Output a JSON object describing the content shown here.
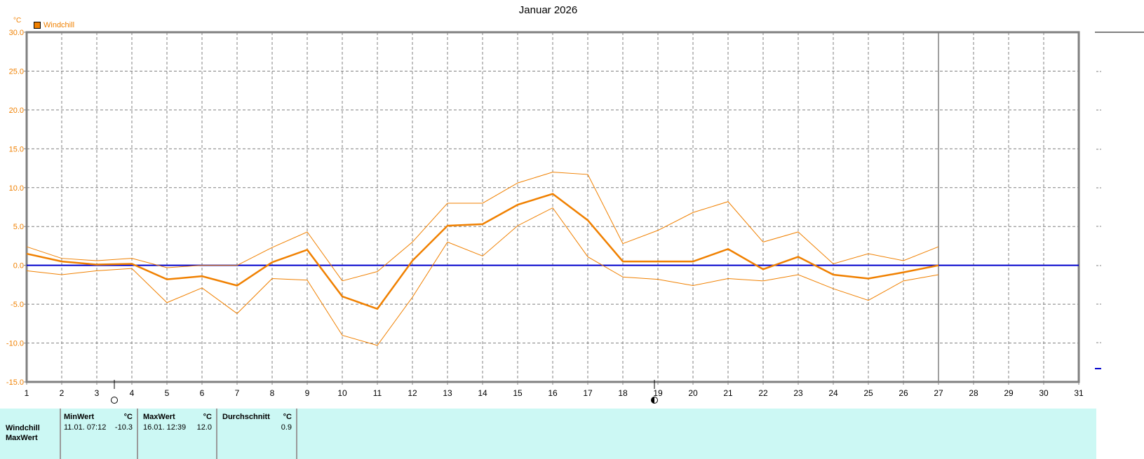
{
  "header": {
    "title": "Januar 2026",
    "unit": "°C"
  },
  "legend": [
    {
      "label": "Windchill",
      "color": "#f08000"
    }
  ],
  "chart_data": {
    "type": "line",
    "title": "Januar 2026",
    "xlabel": "",
    "ylabel": "°C",
    "xlim": [
      1,
      31
    ],
    "ylim": [
      -15,
      30
    ],
    "yticks": [
      "30.0",
      "25.0",
      "20.0",
      "15.0",
      "10.0",
      "5.0",
      "0.0",
      "-5.0",
      "-10.0",
      "-15.0"
    ],
    "grid": true,
    "legend_position": "top-left",
    "x": [
      1,
      2,
      3,
      4,
      5,
      6,
      7,
      8,
      9,
      10,
      11,
      12,
      13,
      14,
      15,
      16,
      17,
      18,
      19,
      20,
      21,
      22,
      23,
      24,
      25,
      26,
      27
    ],
    "series": [
      {
        "name": "Windchill (avg)",
        "values": [
          1.5,
          0.5,
          0.1,
          0.2,
          -1.8,
          -1.4,
          -2.6,
          0.4,
          2.0,
          -4.0,
          -5.6,
          0.6,
          5.1,
          5.3,
          7.8,
          9.2,
          5.8,
          0.5,
          0.5,
          0.5,
          2.1,
          -0.5,
          1.1,
          -1.2,
          -1.7,
          -0.9,
          0.0
        ]
      },
      {
        "name": "Windchill (max)",
        "values": [
          2.4,
          0.9,
          0.6,
          0.9,
          -0.3,
          0.0,
          0.0,
          2.3,
          4.3,
          -2.0,
          -0.8,
          3.0,
          8.0,
          8.0,
          10.6,
          12.0,
          11.7,
          2.8,
          4.5,
          6.8,
          8.2,
          3.0,
          4.3,
          0.2,
          1.5,
          0.6,
          2.4
        ]
      },
      {
        "name": "Windchill (min)",
        "values": [
          -0.7,
          -1.2,
          -0.7,
          -0.4,
          -4.8,
          -2.9,
          -6.2,
          -1.7,
          -1.9,
          -9.0,
          -10.3,
          -4.1,
          3.0,
          1.2,
          5.1,
          7.4,
          1.1,
          -1.5,
          -1.8,
          -2.6,
          -1.7,
          -2.0,
          -1.2,
          -3.0,
          -4.5,
          -2.0,
          -1.2
        ]
      }
    ],
    "reference_line": {
      "y": 0,
      "color": "#0000cc"
    },
    "current_day_marker": 27,
    "moon_phases": [
      {
        "day": 3.5,
        "phase": "full-moon"
      },
      {
        "day": 18.9,
        "phase": "last-quarter"
      }
    ]
  },
  "stats": {
    "row_labels": [
      "Windchill",
      "MaxWert"
    ],
    "columns": [
      {
        "header": "MinWert",
        "unit": "°C",
        "date": "11.01.  07:12",
        "value": "-10.3"
      },
      {
        "header": "MaxWert",
        "unit": "°C",
        "date": "16.01.  12:39",
        "value": "12.0"
      },
      {
        "header": "Durchschnitt",
        "unit": "°C",
        "date": "",
        "value": "0.9"
      }
    ]
  }
}
